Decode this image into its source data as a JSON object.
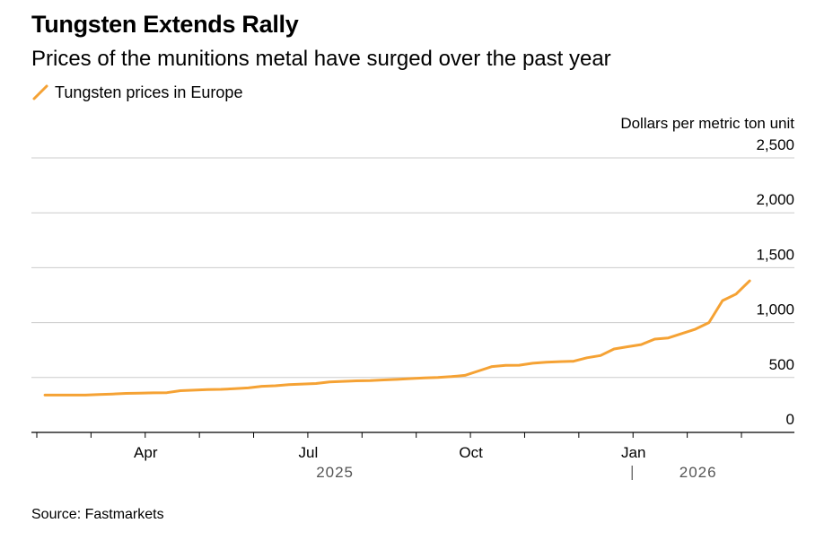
{
  "title": "Tungsten Extends Rally",
  "subtitle": "Prices of the munitions metal have surged over the past year",
  "legend": {
    "label": "Tungsten prices in Europe"
  },
  "source": "Source: Fastmarkets",
  "colors": {
    "series": "#f5a234",
    "grid": "#cccccc",
    "axis": "#000000",
    "year": "#555555"
  },
  "chart_data": {
    "type": "line",
    "title": "Tungsten Extends Rally",
    "ylabel": "Dollars per metric ton unit",
    "xlabel": "",
    "ylim": [
      0,
      2500
    ],
    "y_ticks": [
      0,
      500,
      1000,
      1500,
      2000,
      2500
    ],
    "y_tick_labels": [
      "0",
      "500",
      "1,000",
      "1,500",
      "2,000",
      "2,500"
    ],
    "x_range_months": [
      0,
      13
    ],
    "x_ticks": [
      0,
      1,
      2,
      3,
      4,
      5,
      6,
      7,
      8,
      9,
      10,
      11,
      12,
      13
    ],
    "x_labels": [
      {
        "label": "Apr",
        "month": 2
      },
      {
        "label": "Jul",
        "month": 5
      },
      {
        "label": "Oct",
        "month": 8
      },
      {
        "label": "Jan",
        "month": 11
      }
    ],
    "year_labels": [
      {
        "label": "2025",
        "month": 5.5
      },
      {
        "label": "2026",
        "month": 12.2
      }
    ],
    "year_divider_month": 11,
    "series": [
      {
        "name": "Tungsten prices in Europe",
        "x": [
          0.15,
          0.4,
          0.65,
          0.9,
          1.15,
          1.4,
          1.65,
          1.9,
          2.15,
          2.4,
          2.65,
          2.9,
          3.15,
          3.4,
          3.65,
          3.9,
          4.15,
          4.4,
          4.65,
          4.9,
          5.15,
          5.4,
          5.65,
          5.9,
          6.15,
          6.4,
          6.65,
          6.9,
          7.15,
          7.4,
          7.65,
          7.9,
          8.15,
          8.4,
          8.65,
          8.9,
          9.15,
          9.4,
          9.65,
          9.9,
          10.15,
          10.4,
          10.65,
          10.9,
          11.15,
          11.4,
          11.65,
          11.9,
          12.15,
          12.4,
          12.65,
          12.9,
          13.15
        ],
        "y": [
          340,
          340,
          340,
          340,
          345,
          350,
          355,
          358,
          360,
          362,
          380,
          385,
          390,
          392,
          398,
          405,
          420,
          425,
          435,
          440,
          445,
          460,
          465,
          470,
          472,
          478,
          483,
          490,
          496,
          500,
          508,
          520,
          560,
          600,
          610,
          612,
          630,
          640,
          645,
          648,
          680,
          700,
          760,
          780,
          800,
          850,
          860,
          900,
          940,
          1000,
          1200,
          1260,
          1380
        ]
      }
    ]
  }
}
